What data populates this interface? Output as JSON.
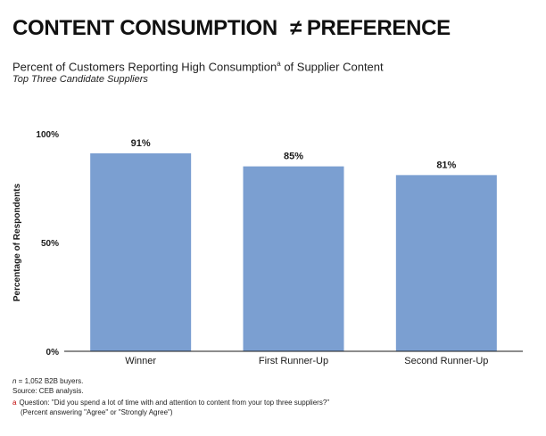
{
  "headline": {
    "left": "CONTENT CONSUMPTION",
    "symbol": "≠",
    "right": "PREFERENCE"
  },
  "subtitle": {
    "text": "Percent of Customers Reporting High Consumption",
    "superscript": "a",
    "suffix": " of Supplier Content"
  },
  "subsubtitle": "Top Three Candidate Suppliers",
  "chart_data": {
    "type": "bar",
    "categories": [
      "Winner",
      "First Runner-Up",
      "Second Runner-Up"
    ],
    "values": [
      91,
      85,
      81
    ],
    "value_labels": [
      "91%",
      "85%",
      "81%"
    ],
    "title": "",
    "xlabel": "",
    "ylabel": "Percentage of Respondents",
    "ylim": [
      0,
      100
    ],
    "yticks": [
      0,
      50,
      100
    ],
    "ytick_labels": [
      "0%",
      "50%",
      "100%"
    ],
    "bar_color": "#7b9fd1",
    "grid": false,
    "legend": "none"
  },
  "notes": {
    "n_symbol": "n",
    "n_text": " = 1,052 B2B buyers.",
    "source": "Source: CEB analysis.",
    "footnote_marker": "a",
    "question": "Question: \"Did you spend a lot of time with and attention to content from your top three suppliers?\"",
    "question_detail": "(Percent answering \"Agree\" or \"Strongly Agree\")"
  }
}
